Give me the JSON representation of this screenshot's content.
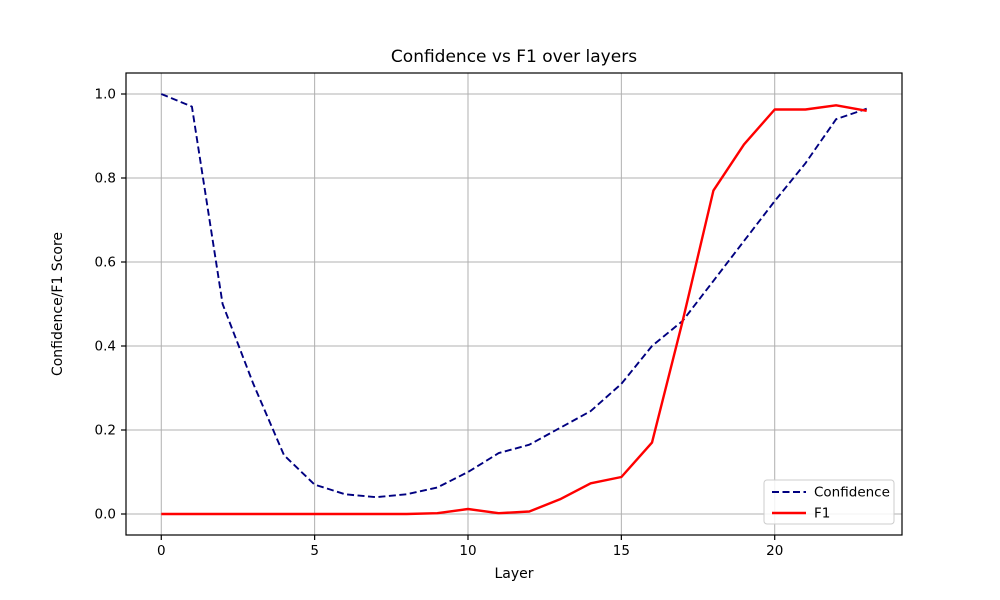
{
  "figure": {
    "title": "Confidence vs F1 over layers",
    "xlabel": "Layer",
    "ylabel": "Confidence/F1 Score"
  },
  "chart_data": {
    "type": "line",
    "title": "Confidence vs F1 over layers",
    "xlabel": "Layer",
    "ylabel": "Confidence/F1 Score",
    "x": [
      0,
      1,
      2,
      3,
      4,
      5,
      6,
      7,
      8,
      9,
      10,
      11,
      12,
      13,
      14,
      15,
      16,
      17,
      18,
      19,
      20,
      21,
      22,
      23
    ],
    "series": [
      {
        "name": "Confidence",
        "color": "#000080",
        "style": "dashed",
        "values": [
          1.0,
          0.97,
          0.5,
          0.31,
          0.14,
          0.07,
          0.047,
          0.04,
          0.047,
          0.063,
          0.1,
          0.145,
          0.165,
          0.205,
          0.245,
          0.31,
          0.4,
          0.46,
          0.555,
          0.65,
          0.745,
          0.835,
          0.94,
          0.965
        ]
      },
      {
        "name": "F1",
        "color": "#ff0000",
        "style": "solid",
        "values": [
          0.0,
          0.0,
          0.0,
          0.0,
          0.0,
          0.0,
          0.0,
          0.0,
          0.0,
          0.002,
          0.012,
          0.002,
          0.006,
          0.035,
          0.073,
          0.088,
          0.17,
          0.46,
          0.77,
          0.88,
          0.963,
          0.963,
          0.973,
          0.96
        ]
      }
    ],
    "xlim": [
      -1.15,
      24.15
    ],
    "ylim": [
      -0.05,
      1.05
    ],
    "xticks": [
      0,
      5,
      10,
      15,
      20
    ],
    "yticks": [
      0.0,
      0.2,
      0.4,
      0.6,
      0.8,
      1.0
    ],
    "xtick_labels": [
      "0",
      "5",
      "10",
      "15",
      "20"
    ],
    "ytick_labels": [
      "0.0",
      "0.2",
      "0.4",
      "0.6",
      "0.8",
      "1.0"
    ],
    "grid": true,
    "grid_color": "#b0b0b0",
    "spine_color": "#000000",
    "background_color": "#ffffff",
    "legend": {
      "location": "lower right",
      "items": [
        "Confidence",
        "F1"
      ]
    }
  }
}
